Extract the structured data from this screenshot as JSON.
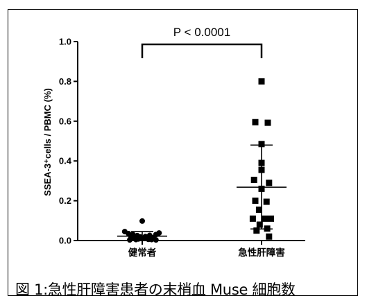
{
  "figure": {
    "caption": "図 1:急性肝障害患者の末梢血 Muse 細胞数"
  },
  "chart_data": {
    "type": "scatter",
    "ylabel": "SSEA-3⁺cells / PBMC (%)",
    "ylim": [
      0,
      1.0
    ],
    "yticks": [
      "0.0",
      "0.2",
      "0.4",
      "0.6",
      "0.8",
      "1.0"
    ],
    "categories": [
      "健常者",
      "急性肝障害"
    ],
    "significance": {
      "label": "P < 0.0001",
      "between": [
        0,
        1
      ]
    },
    "series": [
      {
        "category": "健常者",
        "marker": "circle",
        "points": [
          {
            "dx": -0.28,
            "y": 0.045
          },
          {
            "dx": 0.0,
            "y": 0.098
          },
          {
            "dx": -0.22,
            "y": 0.035
          },
          {
            "dx": 0.27,
            "y": 0.038
          },
          {
            "dx": 0.22,
            "y": 0.03
          },
          {
            "dx": -0.15,
            "y": 0.03
          },
          {
            "dx": -0.08,
            "y": 0.025
          },
          {
            "dx": 0.12,
            "y": 0.026
          },
          {
            "dx": 0.05,
            "y": 0.02
          },
          {
            "dx": -0.03,
            "y": 0.018
          },
          {
            "dx": 0.08,
            "y": 0.015
          },
          {
            "dx": -0.12,
            "y": 0.015
          },
          {
            "dx": 0.18,
            "y": 0.015
          },
          {
            "dx": -0.18,
            "y": 0.015
          },
          {
            "dx": 0.02,
            "y": 0.01
          },
          {
            "dx": -0.06,
            "y": 0.008
          },
          {
            "dx": 0.1,
            "y": 0.006
          },
          {
            "dx": -0.1,
            "y": 0.005
          },
          {
            "dx": 0.15,
            "y": 0.005
          },
          {
            "dx": -0.2,
            "y": 0.003
          },
          {
            "dx": 0.22,
            "y": 0.003
          }
        ],
        "mean": 0.022,
        "sd_low": 0.005,
        "sd_high": 0.045
      },
      {
        "category": "急性肝障害",
        "marker": "square",
        "points": [
          {
            "dx": 0.0,
            "y": 0.8
          },
          {
            "dx": -0.1,
            "y": 0.595
          },
          {
            "dx": 0.1,
            "y": 0.592
          },
          {
            "dx": 0.0,
            "y": 0.485
          },
          {
            "dx": 0.0,
            "y": 0.39
          },
          {
            "dx": 0.0,
            "y": 0.355
          },
          {
            "dx": -0.12,
            "y": 0.305
          },
          {
            "dx": 0.12,
            "y": 0.29
          },
          {
            "dx": 0.0,
            "y": 0.26
          },
          {
            "dx": -0.1,
            "y": 0.2
          },
          {
            "dx": 0.08,
            "y": 0.195
          },
          {
            "dx": -0.04,
            "y": 0.155
          },
          {
            "dx": -0.14,
            "y": 0.11
          },
          {
            "dx": 0.05,
            "y": 0.11
          },
          {
            "dx": 0.15,
            "y": 0.11
          },
          {
            "dx": -0.03,
            "y": 0.08
          },
          {
            "dx": 0.09,
            "y": 0.06
          },
          {
            "dx": -0.08,
            "y": 0.05
          },
          {
            "dx": 0.12,
            "y": 0.02
          }
        ],
        "mean": 0.268,
        "sd_low": 0.058,
        "sd_high": 0.48
      }
    ]
  }
}
